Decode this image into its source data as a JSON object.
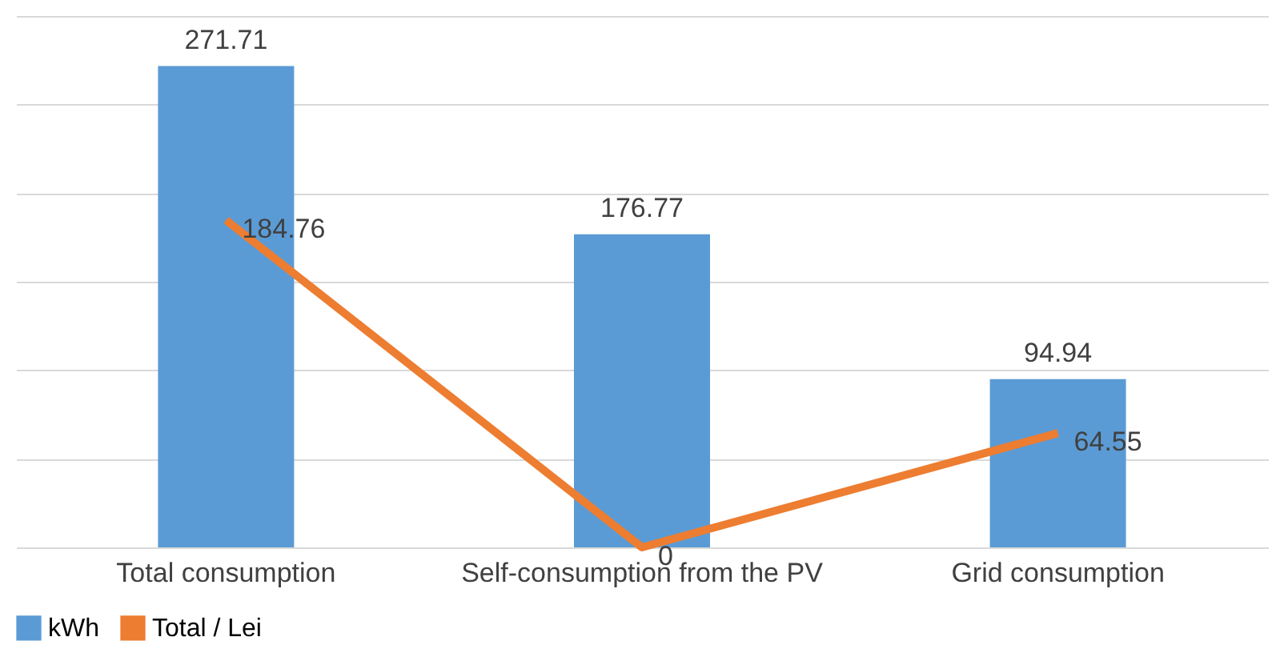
{
  "chart_data": {
    "type": "bar",
    "categories": [
      "Total consumption",
      "Self-consumption from the PV",
      "Grid consumption"
    ],
    "series": [
      {
        "name": "kWh",
        "color": "#5b9bd5",
        "values": [
          271.71,
          176.77,
          94.94
        ]
      },
      {
        "name": "Total / Lei",
        "type": "line",
        "color": "#ed7d31",
        "values": [
          184.76,
          0,
          64.55
        ]
      }
    ],
    "ylim": [
      0,
      300
    ],
    "yticks": [
      {
        "value": 0,
        "label": null
      },
      {
        "value": 50,
        "label": null
      },
      {
        "value": 100,
        "label": null
      },
      {
        "value": 150,
        "label": null
      },
      {
        "value": 200,
        "label": null
      },
      {
        "value": 250,
        "label": null
      },
      {
        "value": 300,
        "label": null
      }
    ],
    "tick_labels": "x",
    "grid": "y",
    "legend": "bottom",
    "data_labels": true,
    "line_style": "solid",
    "marker": "none"
  }
}
